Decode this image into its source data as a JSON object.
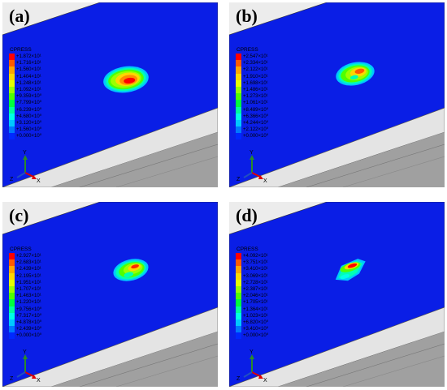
{
  "legend_title": "CPRESS",
  "legend_colors": [
    "#ff0000",
    "#ff5a00",
    "#ffa500",
    "#ffd700",
    "#e6ff00",
    "#9bff00",
    "#4fff00",
    "#00ff3c",
    "#00ff9b",
    "#00ffe6",
    "#00c8ff",
    "#0078ff",
    "#0028ff"
  ],
  "triad_axes": {
    "y": "Y",
    "z": "Z",
    "x": "X"
  },
  "panels": [
    {
      "label": "(a)",
      "ticks": [
        "+1.872×10¹",
        "+1.716×10¹",
        "+1.560×10¹",
        "+1.404×10¹",
        "+1.248×10¹",
        "+1.092×10¹",
        "+9.359×10⁰",
        "+7.799×10⁰",
        "+6.239×10⁰",
        "+4.680×10⁰",
        "+3.120×10⁰",
        "+1.560×10⁰",
        "+0.000×10⁰"
      ]
    },
    {
      "label": "(b)",
      "ticks": [
        "+2.547×10¹",
        "+2.334×10¹",
        "+2.122×10¹",
        "+1.910×10¹",
        "+1.698×10¹",
        "+1.486×10¹",
        "+1.273×10¹",
        "+1.061×10¹",
        "+8.489×10⁰",
        "+6.366×10⁰",
        "+4.244×10⁰",
        "+2.122×10⁰",
        "+0.000×10⁰"
      ]
    },
    {
      "label": "(c)",
      "ticks": [
        "+2.927×10¹",
        "+2.683×10¹",
        "+2.439×10¹",
        "+2.195×10¹",
        "+1.951×10¹",
        "+1.707×10¹",
        "+1.463×10¹",
        "+1.220×10¹",
        "+9.756×10⁰",
        "+7.317×10⁰",
        "+4.878×10⁰",
        "+2.439×10⁰",
        "+0.000×10⁰"
      ]
    },
    {
      "label": "(d)",
      "ticks": [
        "+4.092×10¹",
        "+3.751×10¹",
        "+3.410×10¹",
        "+3.069×10¹",
        "+2.728×10¹",
        "+2.387×10¹",
        "+2.046×10¹",
        "+1.705×10¹",
        "+1.364×10¹",
        "+1.023×10¹",
        "+6.820×10⁰",
        "+3.410×10⁰",
        "+0.000×10⁰"
      ]
    }
  ]
}
